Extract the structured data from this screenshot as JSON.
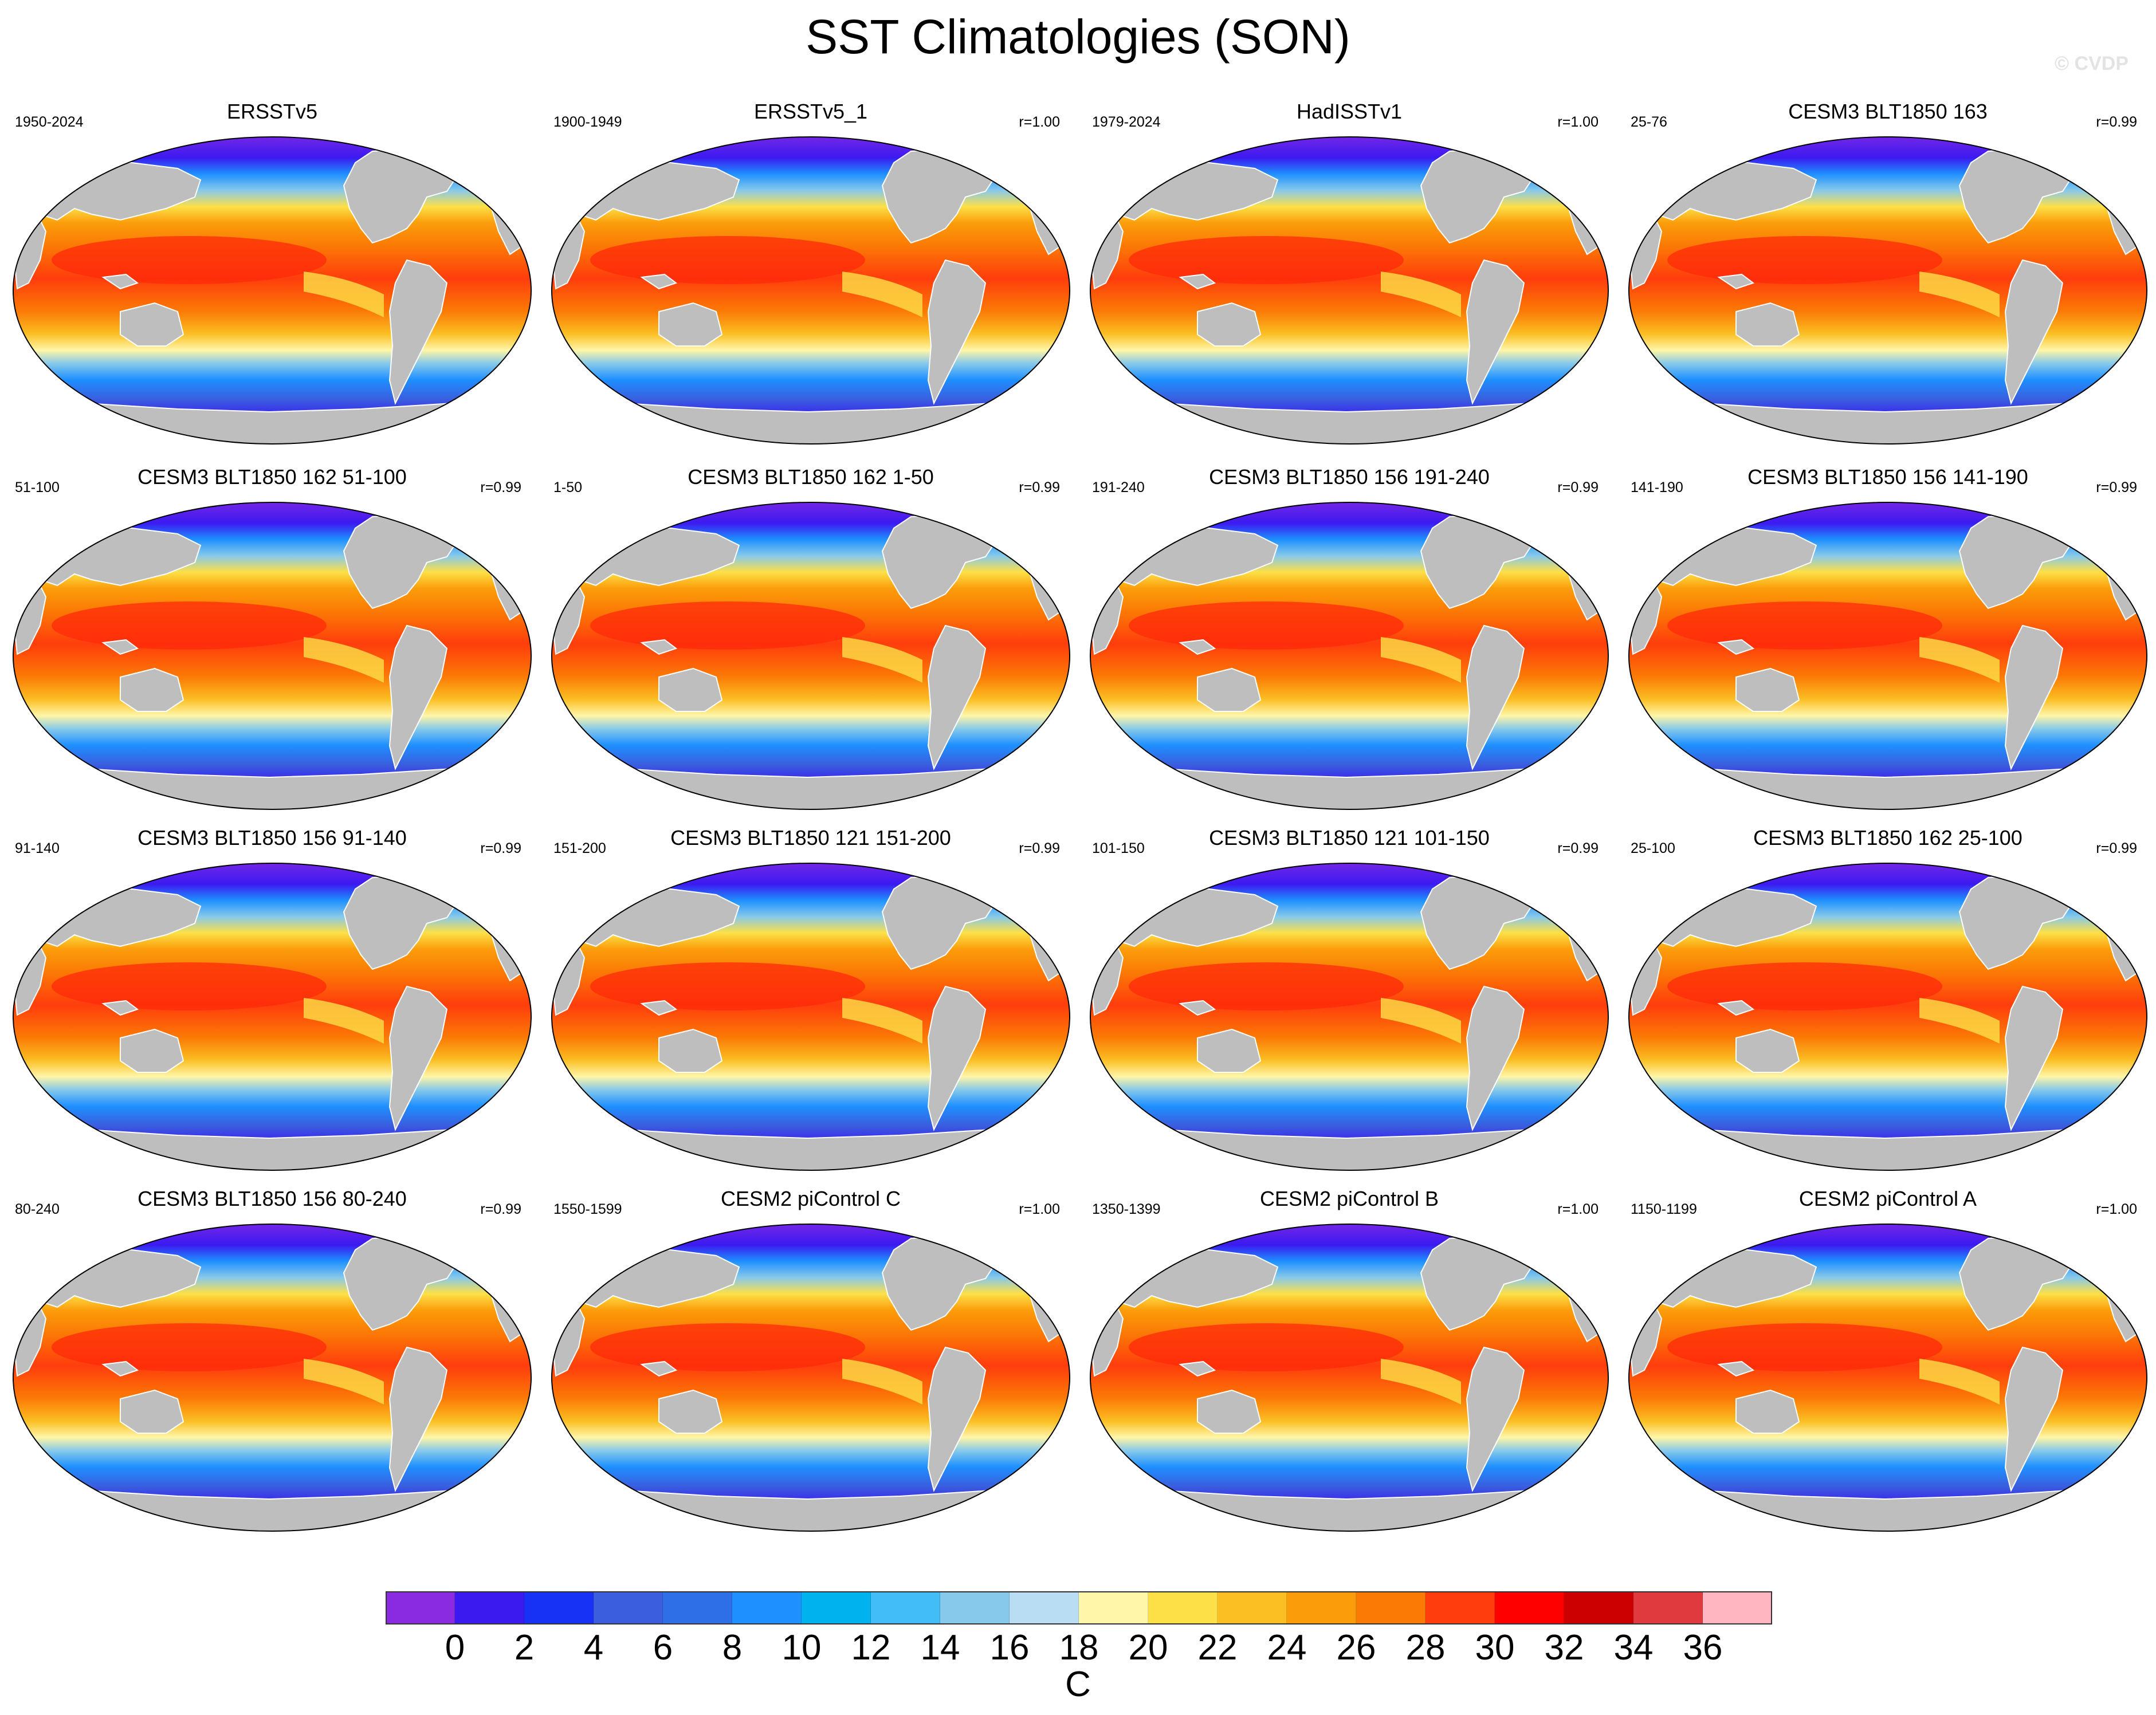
{
  "title": "SST Climatologies (SON)",
  "watermark": "© CVDP",
  "colorbar": {
    "unit": "C",
    "tick_labels": [
      "0",
      "2",
      "4",
      "6",
      "8",
      "10",
      "12",
      "14",
      "16",
      "18",
      "20",
      "22",
      "24",
      "26",
      "28",
      "30",
      "32",
      "34",
      "36"
    ],
    "colors": [
      "#8a2be2",
      "#3b1af0",
      "#1832f5",
      "#3a5ede",
      "#2e6fe8",
      "#1e90ff",
      "#00b2ee",
      "#42bdf5",
      "#87c9ea",
      "#b9def4",
      "#fff6a8",
      "#fde047",
      "#fbbf24",
      "#fb9d0a",
      "#fb7a05",
      "#ff3d0d",
      "#ff0000",
      "#cc0000",
      "#e03a3e",
      "#ffb6c1"
    ]
  },
  "panels": [
    {
      "title": "ERSSTv5",
      "years": "1950-2024",
      "corr": ""
    },
    {
      "title": "ERSSTv5_1",
      "years": "1900-1949",
      "corr": "r=1.00"
    },
    {
      "title": "HadISSTv1",
      "years": "1979-2024",
      "corr": "r=1.00"
    },
    {
      "title": "CESM3 BLT1850 163",
      "years": "25-76",
      "corr": "r=0.99"
    },
    {
      "title": "CESM3 BLT1850 162 51-100",
      "years": "51-100",
      "corr": "r=0.99"
    },
    {
      "title": "CESM3 BLT1850 162 1-50",
      "years": "1-50",
      "corr": "r=0.99"
    },
    {
      "title": "CESM3 BLT1850 156 191-240",
      "years": "191-240",
      "corr": "r=0.99"
    },
    {
      "title": "CESM3 BLT1850 156 141-190",
      "years": "141-190",
      "corr": "r=0.99"
    },
    {
      "title": "CESM3 BLT1850 156 91-140",
      "years": "91-140",
      "corr": "r=0.99"
    },
    {
      "title": "CESM3 BLT1850 121 151-200",
      "years": "151-200",
      "corr": "r=0.99"
    },
    {
      "title": "CESM3 BLT1850 121 101-150",
      "years": "101-150",
      "corr": "r=0.99"
    },
    {
      "title": "CESM3 BLT1850 162 25-100",
      "years": "25-100",
      "corr": "r=0.99"
    },
    {
      "title": "CESM3 BLT1850 156 80-240",
      "years": "80-240",
      "corr": "r=0.99"
    },
    {
      "title": "CESM2 piControl C",
      "years": "1550-1599",
      "corr": "r=1.00"
    },
    {
      "title": "CESM2 piControl B",
      "years": "1350-1399",
      "corr": "r=1.00"
    },
    {
      "title": "CESM2 piControl A",
      "years": "1150-1199",
      "corr": "r=1.00"
    }
  ]
}
